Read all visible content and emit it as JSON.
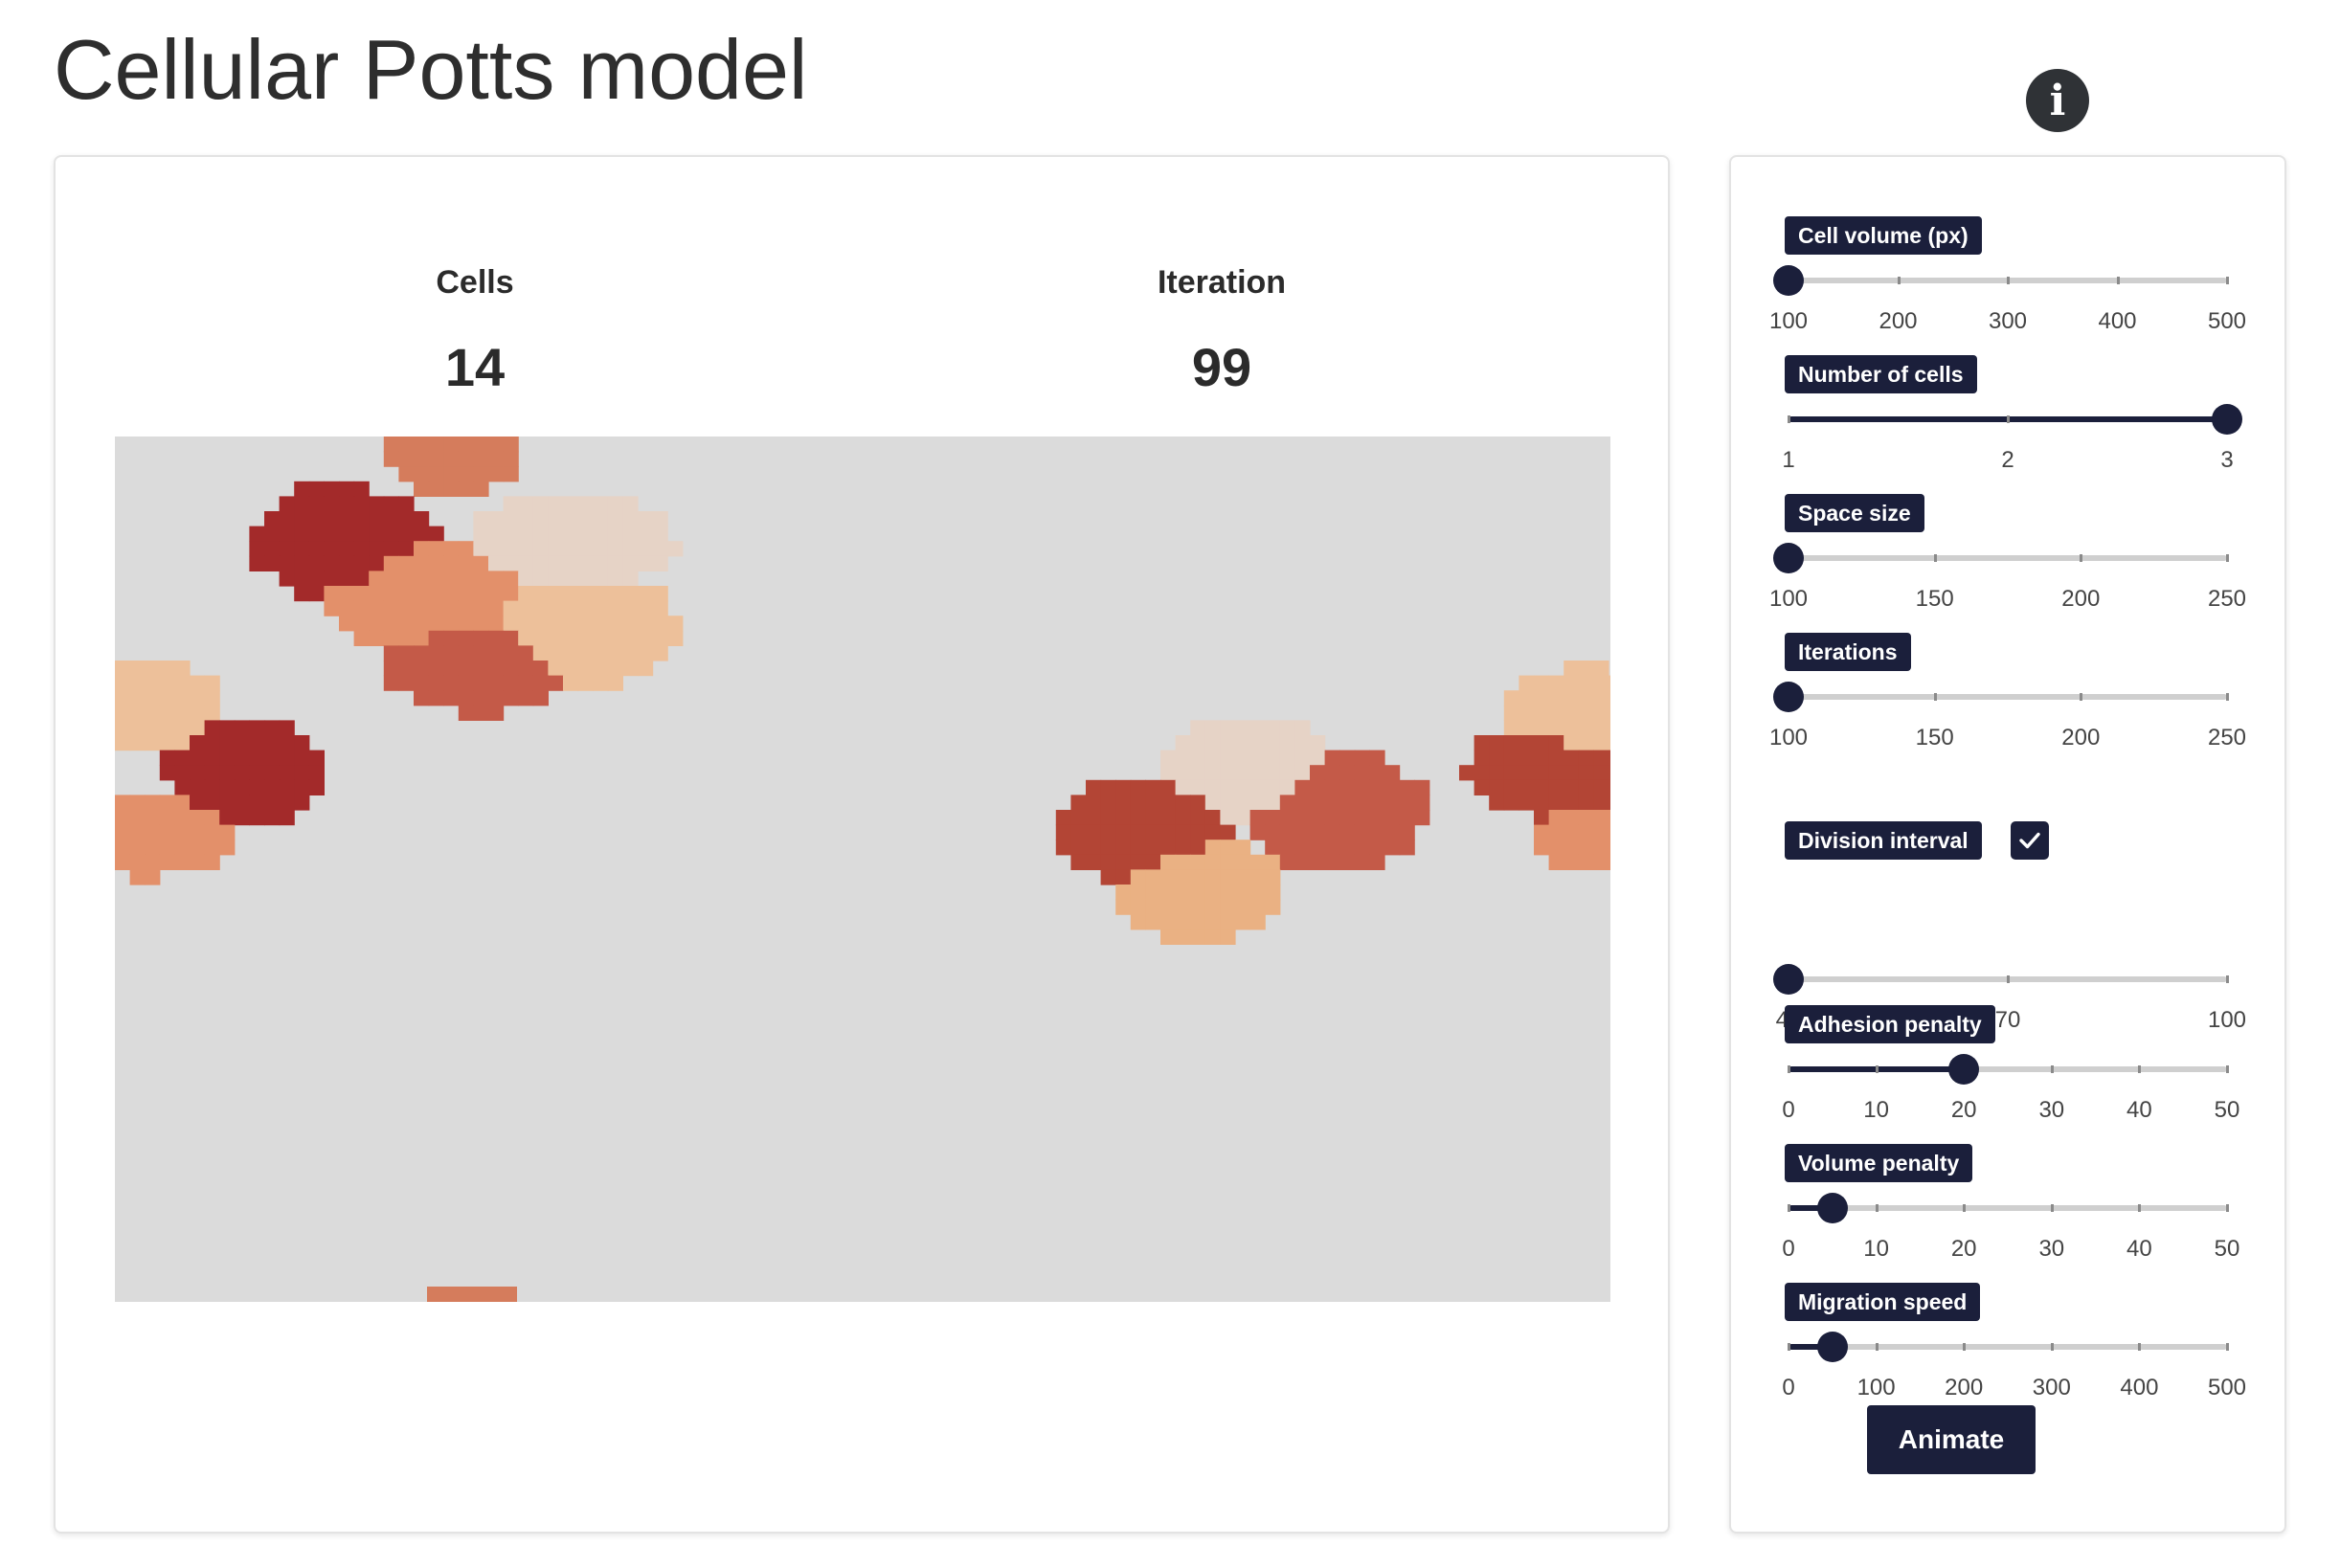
{
  "page": {
    "title": "Cellular Potts model"
  },
  "info_button": {
    "label": "i",
    "icon": "info-icon"
  },
  "stats": {
    "cells": {
      "label": "Cells",
      "value": "14"
    },
    "iteration": {
      "label": "Iteration",
      "value": "99"
    }
  },
  "simulation": {
    "background_color": "#dbdbdb",
    "palette": [
      "#a32a2a",
      "#b34535",
      "#c45a48",
      "#d57c5c",
      "#e3906a",
      "#eab183",
      "#edc09a",
      "#e6d3c6"
    ]
  },
  "controls": {
    "cell_volume": {
      "label": "Cell volume (px)",
      "min": 100,
      "max": 500,
      "value": 100,
      "ticks": [
        "100",
        "200",
        "300",
        "400",
        "500"
      ]
    },
    "number_of_cells": {
      "label": "Number of cells",
      "min": 1,
      "max": 3,
      "value": 3,
      "ticks": [
        "1",
        "2",
        "3"
      ]
    },
    "space_size": {
      "label": "Space size",
      "min": 100,
      "max": 250,
      "value": 100,
      "ticks": [
        "100",
        "150",
        "200",
        "250"
      ]
    },
    "iterations": {
      "label": "Iterations",
      "min": 100,
      "max": 250,
      "value": 100,
      "ticks": [
        "100",
        "150",
        "200",
        "250"
      ]
    },
    "division_interval": {
      "label": "Division interval",
      "checked": true,
      "min": 40,
      "max": 100,
      "value": 40,
      "ticks": [
        "40",
        "70",
        "100"
      ]
    },
    "adhesion_penalty": {
      "label": "Adhesion penalty",
      "min": 0,
      "max": 50,
      "value": 20,
      "ticks": [
        "0",
        "10",
        "20",
        "30",
        "40",
        "50"
      ]
    },
    "volume_penalty": {
      "label": "Volume penalty",
      "min": 0,
      "max": 50,
      "value": 5,
      "ticks": [
        "0",
        "10",
        "20",
        "30",
        "40",
        "50"
      ]
    },
    "migration_speed": {
      "label": "Migration speed",
      "min": 0,
      "max": 500,
      "value": 50,
      "ticks": [
        "0",
        "100",
        "200",
        "300",
        "400",
        "500"
      ]
    }
  },
  "animate_button": {
    "label": "Animate"
  }
}
